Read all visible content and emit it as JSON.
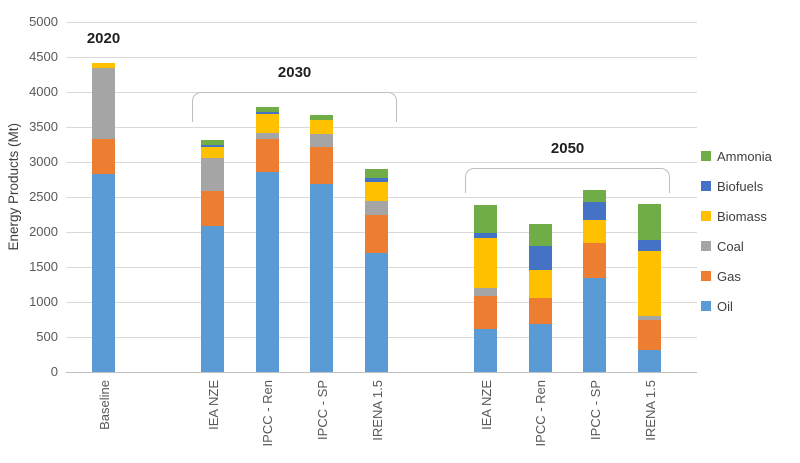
{
  "chart_data": {
    "type": "bar",
    "stacked": true,
    "title": "",
    "ylabel": "Energy Products (Mt)",
    "xlabel": "",
    "ylim": [
      0,
      5000
    ],
    "ytick_step": 500,
    "yticks": [
      "0",
      "500",
      "1000",
      "1500",
      "2000",
      "2500",
      "3000",
      "3500",
      "4000",
      "4500",
      "5000"
    ],
    "grid": true,
    "categories": [
      "Baseline",
      "IEA NZE",
      "IPCC - Ren",
      "IPCC - SP",
      "IRENA 1.5",
      "IEA NZE",
      "IPCC - Ren",
      "IPCC - SP",
      "IRENA 1.5"
    ],
    "series": [
      {
        "name": "Oil",
        "color": "#5B9BD5",
        "values": [
          2830,
          2080,
          2860,
          2685,
          1700,
          620,
          685,
          1340,
          310
        ]
      },
      {
        "name": "Gas",
        "color": "#ED7D31",
        "values": [
          500,
          500,
          475,
          525,
          550,
          465,
          370,
          500,
          430
        ]
      },
      {
        "name": "Coal",
        "color": "#A5A5A5",
        "values": [
          1010,
          480,
          80,
          190,
          190,
          110,
          0,
          0,
          55
        ]
      },
      {
        "name": "Biomass",
        "color": "#FFC000",
        "values": [
          80,
          150,
          275,
          205,
          270,
          715,
          405,
          335,
          930
        ]
      },
      {
        "name": "Biofuels",
        "color": "#4472C4",
        "values": [
          0,
          40,
          20,
          0,
          60,
          80,
          335,
          260,
          165
        ]
      },
      {
        "name": "Ammonia",
        "color": "#70AD47",
        "values": [
          0,
          70,
          70,
          65,
          130,
          390,
          320,
          165,
          510
        ]
      }
    ],
    "legend": {
      "position": "right",
      "entries": [
        "Ammonia",
        "Biofuels",
        "Biomass",
        "Coal",
        "Gas",
        "Oil"
      ]
    },
    "groups": [
      {
        "label": "2020",
        "bracket": false,
        "from": 0,
        "to": 0
      },
      {
        "label": "2030",
        "bracket": true,
        "from": 1,
        "to": 4
      },
      {
        "label": "2050",
        "bracket": true,
        "from": 5,
        "to": 8
      }
    ]
  }
}
